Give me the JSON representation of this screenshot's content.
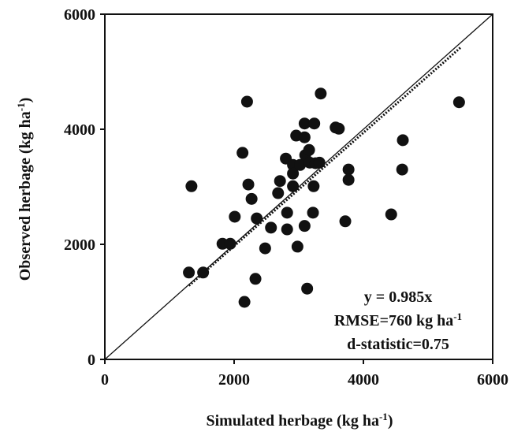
{
  "chart_data": {
    "type": "scatter",
    "x_label": [
      "Simulated herbage (kg ha",
      "-1",
      ")"
    ],
    "y_label": [
      "Observed herbage (kg ha",
      "-1",
      ")"
    ],
    "annotations": [
      [
        "y = 0.985x"
      ],
      [
        "RMSE=760 kg ha",
        "-1"
      ],
      [
        "d-statistic=0.75"
      ]
    ],
    "xlim": [
      0,
      6000
    ],
    "ylim": [
      0,
      6000
    ],
    "xticks": [
      0,
      2000,
      4000,
      6000
    ],
    "yticks": [
      0,
      2000,
      4000,
      6000
    ],
    "color": "#111111",
    "reference_line_slope": 1,
    "fit_line": {
      "slope": 0.985,
      "x_range": [
        1300,
        5500
      ]
    },
    "x": [
      1340,
      1300,
      1520,
      1820,
      1940,
      2010,
      2130,
      2200,
      2220,
      2270,
      2160,
      2330,
      2350,
      2480,
      2570,
      2680,
      2710,
      2800,
      2820,
      2820,
      2910,
      2910,
      2910,
      2960,
      2980,
      3020,
      3090,
      3090,
      3090,
      3100,
      3130,
      3160,
      3170,
      3220,
      3230,
      3240,
      3260,
      3320,
      3340,
      3570,
      3620,
      3720,
      3770,
      3770,
      4430,
      4600,
      4610,
      5480
    ],
    "y": [
      3010,
      1510,
      1510,
      2010,
      2010,
      2480,
      3590,
      4480,
      3040,
      2790,
      1000,
      1400,
      2450,
      1930,
      2290,
      2890,
      3100,
      3490,
      2550,
      2260,
      3380,
      3230,
      3010,
      3890,
      1960,
      3380,
      2320,
      4100,
      3860,
      3550,
      1230,
      3640,
      3420,
      2550,
      3010,
      4100,
      3410,
      3420,
      4620,
      4030,
      4010,
      2400,
      3300,
      3120,
      2520,
      3300,
      3810,
      4470
    ]
  }
}
